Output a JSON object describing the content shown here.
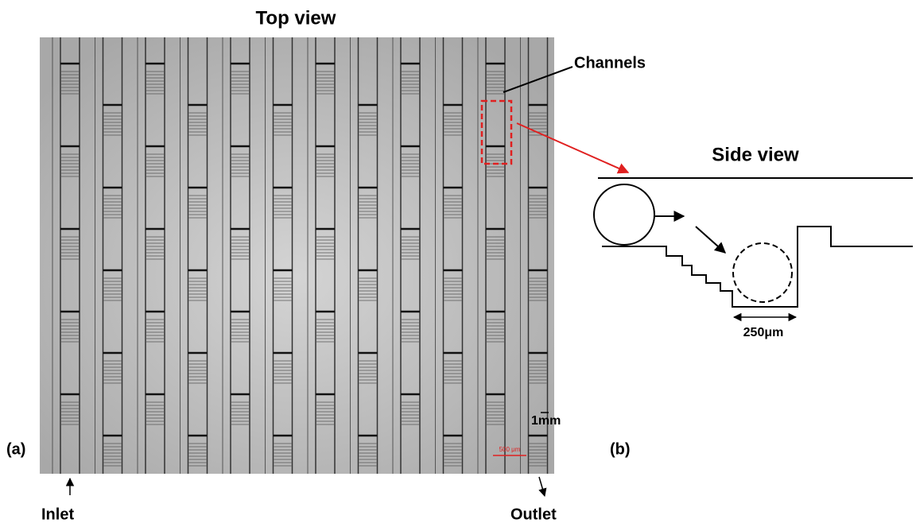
{
  "top_view": {
    "title": "Top view",
    "channels_label": "Channels",
    "panel_label": "(a)",
    "inlet": "Inlet",
    "outlet": "Outlet",
    "scale_label": "1mm",
    "micro_scale_label": "500 μm"
  },
  "side_view": {
    "title": "Side view",
    "panel_label": "(b)",
    "dimension_label": "250μm"
  }
}
